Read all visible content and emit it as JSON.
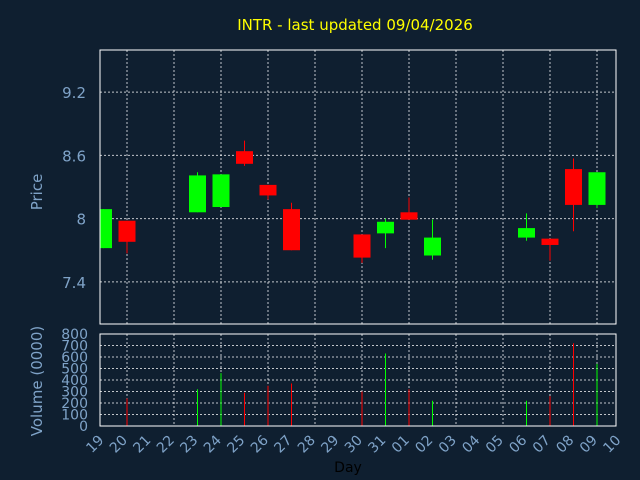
{
  "chart_data": {
    "type": "candlestick",
    "title": "INTR - last updated 09/04/2026",
    "xlabel": "Day",
    "price_ylabel": "Price",
    "volume_ylabel": "Volume (0000)",
    "price_ylim": [
      7.0,
      9.6
    ],
    "price_ticks": [
      "7.4",
      "8",
      "8.6",
      "9.2"
    ],
    "volume_ylim": [
      0,
      800
    ],
    "volume_ticks": [
      "0",
      "100",
      "200",
      "300",
      "400",
      "500",
      "600",
      "700",
      "800"
    ],
    "x_labels": [
      "19",
      "20",
      "21",
      "22",
      "23",
      "24",
      "25",
      "26",
      "27",
      "28",
      "29",
      "30",
      "31",
      "01",
      "02",
      "03",
      "04",
      "05",
      "06",
      "07",
      "08",
      "09",
      "10"
    ],
    "candles": [
      {
        "day": "19",
        "open": 7.72,
        "close": 8.09,
        "high": 8.09,
        "low": 7.72,
        "volume": 0
      },
      {
        "day": "20",
        "open": 7.98,
        "close": 7.78,
        "high": 7.98,
        "low": 7.67,
        "volume": 240
      },
      {
        "day": "23",
        "open": 8.06,
        "close": 8.41,
        "high": 8.44,
        "low": 8.06,
        "volume": 320
      },
      {
        "day": "24",
        "open": 8.11,
        "close": 8.42,
        "high": 8.42,
        "low": 8.11,
        "volume": 460
      },
      {
        "day": "25",
        "open": 8.64,
        "close": 8.52,
        "high": 8.74,
        "low": 8.5,
        "volume": 290
      },
      {
        "day": "26",
        "open": 8.32,
        "close": 8.22,
        "high": 8.32,
        "low": 8.18,
        "volume": 350
      },
      {
        "day": "27",
        "open": 8.09,
        "close": 7.7,
        "high": 8.15,
        "low": 7.7,
        "volume": 370
      },
      {
        "day": "30",
        "open": 7.85,
        "close": 7.63,
        "high": 7.85,
        "low": 7.58,
        "volume": 300
      },
      {
        "day": "31",
        "open": 7.86,
        "close": 7.97,
        "high": 8.0,
        "low": 7.72,
        "volume": 630
      },
      {
        "day": "01",
        "open": 8.06,
        "close": 7.99,
        "high": 8.2,
        "low": 7.99,
        "volume": 320
      },
      {
        "day": "02",
        "open": 7.65,
        "close": 7.82,
        "high": 7.99,
        "low": 7.61,
        "volume": 220
      },
      {
        "day": "06",
        "open": 7.82,
        "close": 7.91,
        "high": 8.05,
        "low": 7.79,
        "volume": 220
      },
      {
        "day": "07",
        "open": 7.81,
        "close": 7.75,
        "high": 7.81,
        "low": 7.6,
        "volume": 260
      },
      {
        "day": "08",
        "open": 8.47,
        "close": 8.13,
        "high": 8.57,
        "low": 7.88,
        "volume": 720
      },
      {
        "day": "09",
        "open": 8.13,
        "close": 8.44,
        "high": 8.44,
        "low": 8.1,
        "volume": 540
      }
    ]
  },
  "colors": {
    "background": "#0f1f30",
    "plot_border": "#ffffff",
    "grid": "#ffffff",
    "title": "#ffff00",
    "axis_text": "#7fa3c8",
    "xlabel": "#000000",
    "up": "#00ff00",
    "down": "#ff0000"
  }
}
